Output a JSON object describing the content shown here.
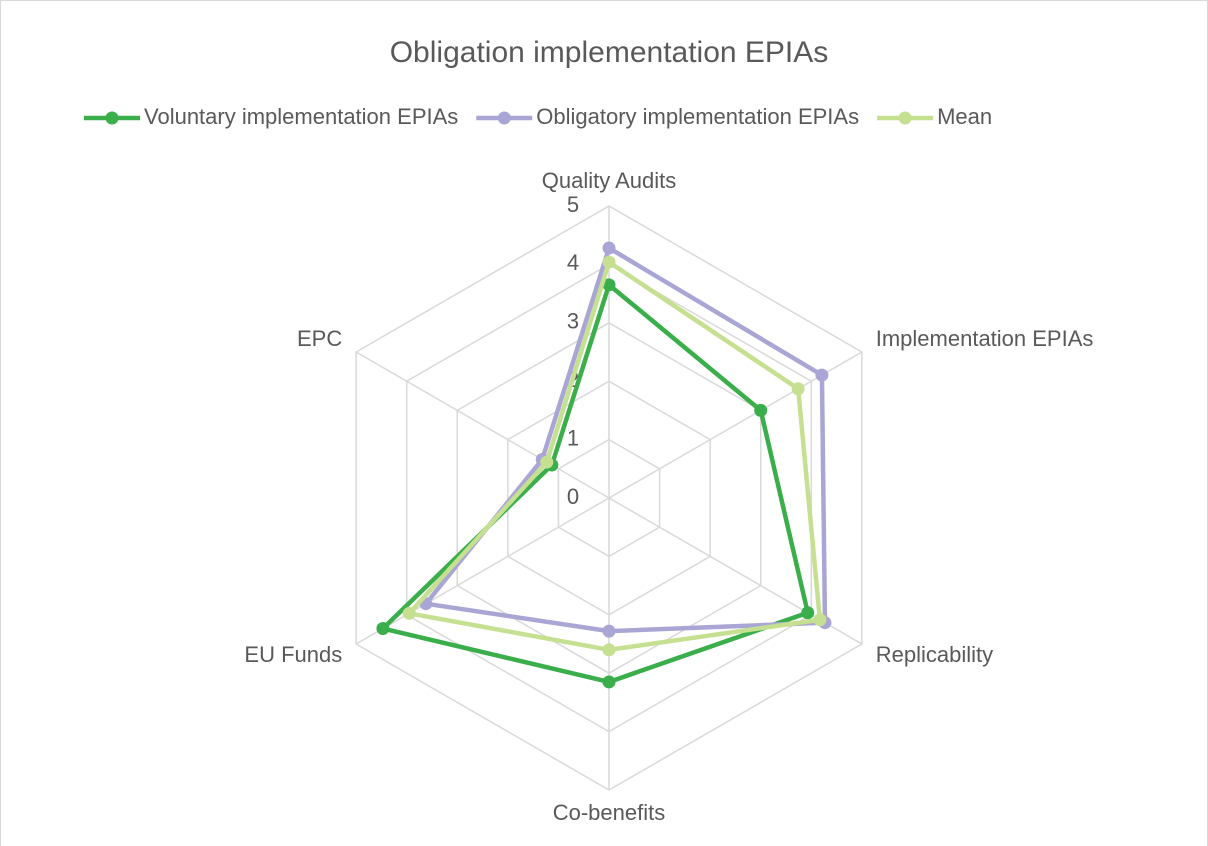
{
  "chart_data": {
    "type": "radar",
    "title": "Obligation implementation EPIAs",
    "categories": [
      "Quality Audits",
      "Implementation EPIAs",
      "Replicability",
      "Co-benefits",
      "EU Funds",
      "EPC"
    ],
    "series": [
      {
        "name": "Voluntary implementation EPIAs",
        "color": "#3aae4a",
        "values": [
          3.65,
          3.0,
          3.93,
          3.15,
          4.47,
          1.13
        ]
      },
      {
        "name": "Obligatory implementation EPIAs",
        "color": "#a9a6d6",
        "values": [
          4.28,
          4.21,
          4.27,
          2.28,
          3.62,
          1.32
        ]
      },
      {
        "name": "Mean",
        "color": "#c5e090",
        "values": [
          4.04,
          3.74,
          4.17,
          2.6,
          3.95,
          1.23
        ]
      }
    ],
    "rlim": [
      0,
      5
    ],
    "rticks": [
      0,
      1,
      2,
      3,
      4,
      5
    ],
    "grid": true,
    "legend": "top"
  }
}
